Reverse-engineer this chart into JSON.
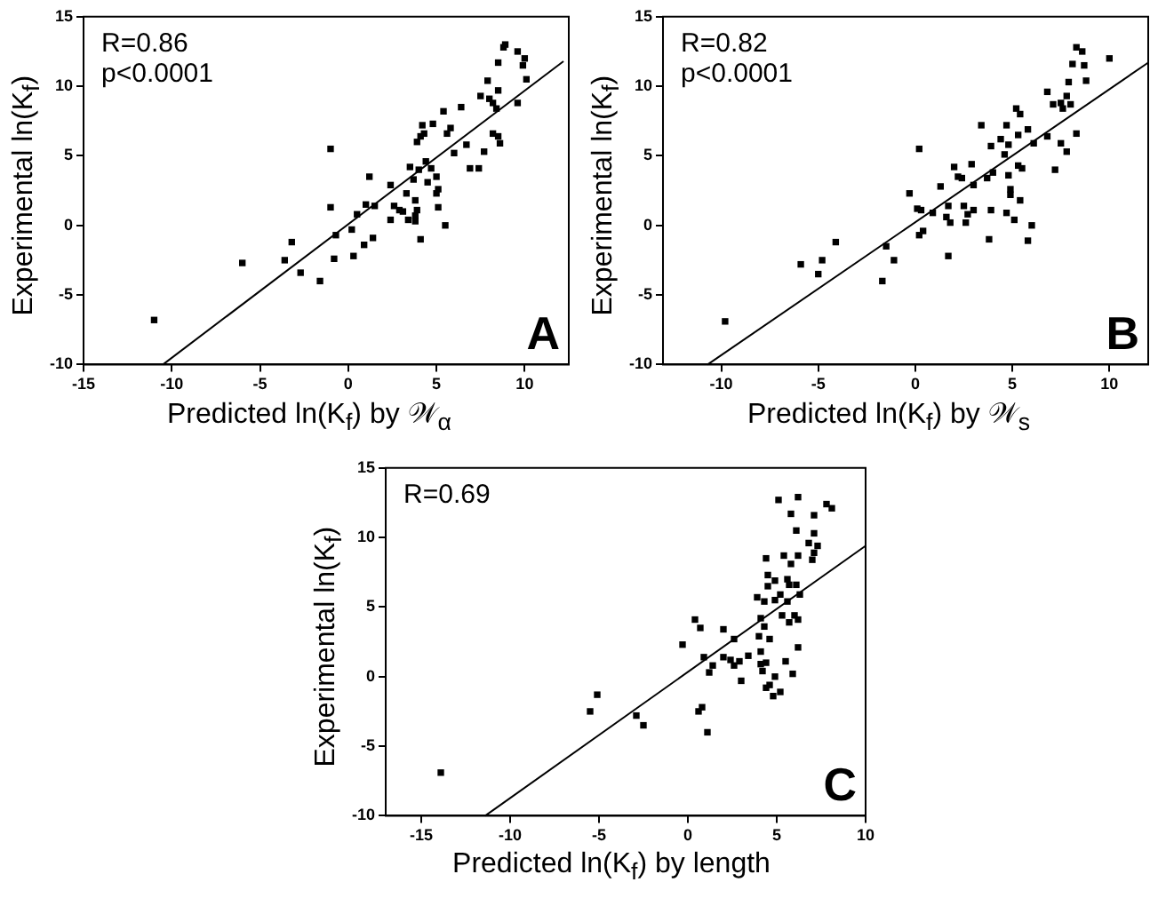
{
  "chart_data": [
    {
      "type": "scatter",
      "xlabel": "Predicted ln(K$_{f}$) by 𝒲$_{α}$",
      "ylabel": "Experimental ln(K$_{f}$)",
      "annotations": [
        "R=0.86",
        "p<0.0001",
        "A"
      ],
      "xlim": [
        -15,
        12.5
      ],
      "ylim": [
        -10,
        15
      ],
      "xticks": [
        -15,
        -10,
        -5,
        0,
        5,
        10
      ],
      "yticks": [
        -10,
        -5,
        0,
        5,
        10,
        15
      ],
      "grid": false,
      "legend": false,
      "marker": "square",
      "series": [
        {
          "color": "#000000",
          "x": [
            -11.0,
            -6.0,
            -3.6,
            -3.2,
            -2.7,
            -1.6,
            -0.8,
            -0.7,
            -1.0,
            -1.0,
            0.2,
            0.3,
            0.5,
            0.9,
            1.0,
            1.2,
            1.4,
            1.5,
            2.4,
            2.4,
            2.6,
            2.9,
            3.1,
            3.3,
            3.4,
            3.5,
            3.7,
            3.8,
            3.8,
            3.8,
            3.9,
            4.0,
            4.1,
            3.9,
            4.1,
            4.2,
            4.3,
            4.4,
            4.5,
            4.7,
            4.8,
            5.0,
            5.0,
            5.1,
            5.1,
            5.4,
            5.5,
            5.6,
            5.8,
            6.0,
            6.4,
            6.7,
            6.9,
            7.4,
            7.5,
            7.7,
            7.9,
            8.0,
            8.2,
            8.4,
            8.2,
            8.5,
            8.5,
            8.5,
            8.6,
            8.8,
            8.9,
            9.6,
            9.6,
            9.9,
            10.0,
            10.1
          ],
          "values": [
            -6.8,
            -2.7,
            -2.5,
            -1.2,
            -3.4,
            -4.0,
            -2.4,
            -0.7,
            5.5,
            1.3,
            -0.3,
            -2.2,
            0.8,
            -1.4,
            1.5,
            3.5,
            -0.9,
            1.4,
            2.9,
            0.4,
            1.4,
            1.1,
            1.0,
            2.3,
            0.4,
            4.2,
            3.3,
            1.8,
            0.7,
            0.3,
            1.1,
            4.0,
            -1.0,
            6.0,
            6.4,
            7.2,
            6.6,
            4.6,
            3.1,
            4.1,
            7.3,
            3.5,
            2.3,
            1.3,
            2.6,
            8.2,
            0.0,
            6.6,
            7.0,
            5.2,
            8.5,
            5.8,
            4.1,
            4.1,
            9.3,
            5.3,
            10.4,
            9.1,
            8.8,
            8.4,
            6.6,
            11.7,
            9.7,
            6.4,
            5.9,
            12.8,
            13.0,
            12.5,
            8.8,
            11.5,
            12.0,
            10.5
          ]
        },
        {
          "type": "line",
          "color": "#000000",
          "marker": "none",
          "line_style": "solid",
          "x": [
            -10.5,
            12.2
          ],
          "values": [
            -10,
            11.8
          ]
        }
      ]
    },
    {
      "type": "scatter",
      "xlabel": "Predicted ln(K$_{f}$)  by 𝒲$_{s}$",
      "ylabel": "Experimental ln(K$_{f}$)",
      "annotations": [
        "R=0.82",
        "p<0.0001",
        "B"
      ],
      "xlim": [
        -13,
        12
      ],
      "ylim": [
        -10,
        15
      ],
      "xticks": [
        -10,
        -5,
        0,
        5,
        10
      ],
      "yticks": [
        -10,
        -5,
        0,
        5,
        10,
        15
      ],
      "grid": false,
      "legend": false,
      "marker": "square",
      "series": [
        {
          "color": "#000000",
          "x": [
            -9.8,
            -5.9,
            -5.0,
            -4.8,
            -4.1,
            -1.7,
            -1.5,
            -1.1,
            -0.3,
            0.1,
            0.2,
            0.2,
            0.3,
            0.4,
            0.9,
            1.3,
            1.7,
            1.6,
            1.8,
            1.7,
            2.0,
            2.2,
            2.4,
            2.5,
            2.6,
            2.7,
            2.9,
            3.0,
            3.0,
            3.4,
            3.7,
            3.8,
            3.9,
            4.0,
            3.9,
            4.4,
            4.6,
            4.7,
            4.8,
            4.7,
            4.9,
            4.8,
            4.9,
            5.1,
            5.2,
            5.3,
            5.4,
            5.3,
            5.5,
            5.4,
            5.8,
            5.8,
            6.0,
            6.1,
            6.8,
            6.8,
            7.1,
            7.2,
            7.5,
            7.5,
            7.6,
            7.8,
            7.8,
            7.9,
            8.0,
            8.1,
            8.3,
            8.3,
            8.6,
            8.7,
            8.8,
            10.0
          ],
          "values": [
            -6.9,
            -2.8,
            -3.5,
            -2.5,
            -1.2,
            -4.0,
            -1.5,
            -2.5,
            2.3,
            1.2,
            5.5,
            -0.7,
            1.1,
            -0.4,
            0.9,
            2.8,
            1.4,
            0.6,
            0.2,
            -2.2,
            4.2,
            3.5,
            3.4,
            1.4,
            0.2,
            0.8,
            4.4,
            2.9,
            1.1,
            7.2,
            3.4,
            -1.0,
            1.1,
            3.8,
            5.7,
            6.2,
            5.1,
            7.2,
            5.8,
            0.9,
            2.2,
            3.6,
            2.6,
            0.4,
            8.4,
            4.3,
            8.0,
            6.5,
            4.1,
            1.8,
            6.9,
            -1.1,
            0.0,
            5.9,
            9.6,
            6.4,
            8.7,
            4.0,
            8.8,
            5.9,
            8.4,
            9.3,
            5.3,
            10.3,
            8.7,
            11.6,
            6.6,
            12.8,
            12.5,
            11.5,
            10.4,
            12.0
          ]
        },
        {
          "type": "line",
          "color": "#000000",
          "marker": "none",
          "line_style": "solid",
          "x": [
            -10.7,
            12.0
          ],
          "values": [
            -10,
            11.7
          ]
        }
      ]
    },
    {
      "type": "scatter",
      "xlabel": "Predicted ln(K$_{f}$) by length",
      "ylabel": "Experimental ln(K$_{f}$)",
      "annotations": [
        "R=0.69",
        "C"
      ],
      "xlim": [
        -17,
        10
      ],
      "ylim": [
        -10,
        15
      ],
      "xticks": [
        -15,
        -10,
        -5,
        0,
        5,
        10
      ],
      "yticks": [
        -10,
        -5,
        0,
        5,
        10,
        15
      ],
      "grid": false,
      "legend": false,
      "marker": "square",
      "series": [
        {
          "color": "#000000",
          "x": [
            -13.9,
            -5.5,
            -5.1,
            -2.9,
            -2.5,
            -0.3,
            0.4,
            0.7,
            0.6,
            0.8,
            0.9,
            1.1,
            1.2,
            1.4,
            2.0,
            2.0,
            2.4,
            2.6,
            2.6,
            2.9,
            3.0,
            3.4,
            3.9,
            4.1,
            4.0,
            4.1,
            4.1,
            4.2,
            4.3,
            4.3,
            4.4,
            4.4,
            4.4,
            4.5,
            4.5,
            4.6,
            4.6,
            4.8,
            4.9,
            4.9,
            4.9,
            5.1,
            5.2,
            5.2,
            5.3,
            5.4,
            5.5,
            5.6,
            5.6,
            5.7,
            5.7,
            5.8,
            5.8,
            5.9,
            6.0,
            6.1,
            6.1,
            6.2,
            6.2,
            6.2,
            6.2,
            6.3,
            6.8,
            7.0,
            7.1,
            7.1,
            7.1,
            7.3,
            7.8,
            8.1
          ],
          "values": [
            -6.9,
            -2.5,
            -1.3,
            -2.8,
            -3.5,
            2.3,
            4.1,
            3.5,
            -2.5,
            -2.2,
            1.4,
            -4.0,
            0.3,
            0.8,
            3.4,
            1.4,
            1.2,
            0.8,
            2.7,
            1.1,
            -0.3,
            1.5,
            5.7,
            4.2,
            2.9,
            1.8,
            0.9,
            0.4,
            5.4,
            3.6,
            8.5,
            1.0,
            -0.8,
            7.3,
            6.5,
            2.7,
            -0.6,
            -1.4,
            6.9,
            5.5,
            0.0,
            12.7,
            5.9,
            -1.1,
            4.4,
            8.7,
            1.1,
            7.0,
            5.4,
            6.6,
            3.9,
            11.7,
            8.1,
            0.2,
            4.4,
            6.6,
            10.5,
            12.9,
            4.1,
            2.1,
            8.7,
            5.9,
            9.6,
            8.4,
            10.3,
            11.6,
            8.9,
            9.4,
            12.4,
            12.1
          ]
        },
        {
          "type": "line",
          "color": "#000000",
          "marker": "none",
          "line_style": "solid",
          "x": [
            -11.4,
            10
          ],
          "values": [
            -10,
            9.4
          ]
        }
      ]
    }
  ]
}
